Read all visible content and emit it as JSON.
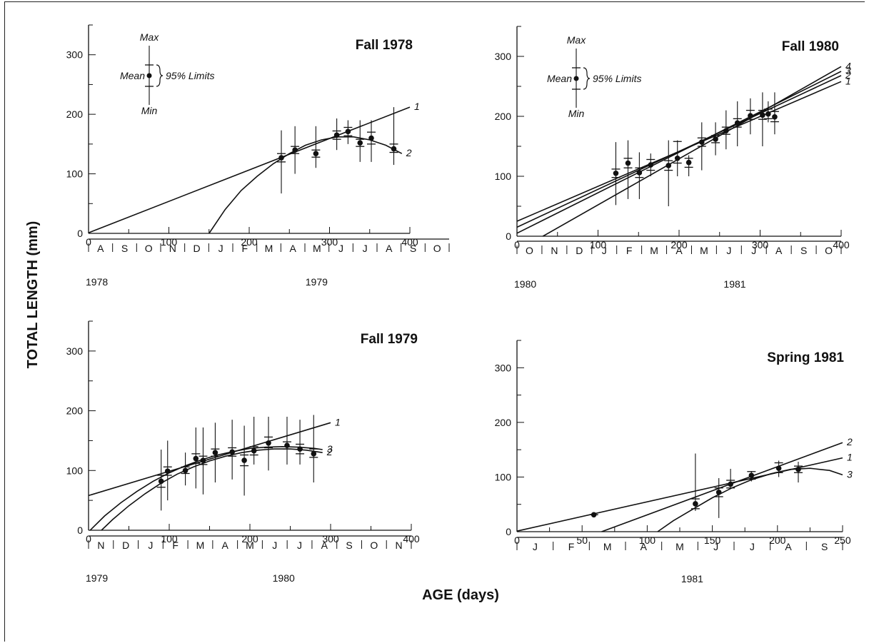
{
  "figure": {
    "ylabel": "TOTAL LENGTH (mm)",
    "xlabel": "AGE (days)"
  },
  "colors": {
    "ink": "#111111",
    "background": "#ffffff"
  },
  "chart_data": [
    {
      "type": "scatter",
      "title": "Fall 1978",
      "xlim": [
        0,
        400
      ],
      "ylim": [
        0,
        350
      ],
      "xticks": [
        0,
        100,
        200,
        300,
        400
      ],
      "yticks": [
        0,
        100,
        200,
        300
      ],
      "months": [
        "A",
        "S",
        "O",
        "N",
        "D",
        "J",
        "F",
        "M",
        "A",
        "M",
        "J",
        "J",
        "A",
        "S",
        "O"
      ],
      "years": [
        {
          "label": "1978",
          "x": 0
        },
        {
          "label": "1979",
          "x": 270
        }
      ],
      "legend": {
        "max": "Max",
        "mean": "Mean",
        "limits": "95% Limits",
        "min": "Min"
      },
      "points": [
        {
          "x": 240,
          "mean": 127,
          "lo": 120,
          "hi": 134,
          "min": 67,
          "max": 173
        },
        {
          "x": 257,
          "mean": 140,
          "lo": 134,
          "hi": 146,
          "min": 100,
          "max": 180
        },
        {
          "x": 283,
          "mean": 134,
          "lo": 128,
          "hi": 140,
          "min": 110,
          "max": 180
        },
        {
          "x": 309,
          "mean": 165,
          "lo": 158,
          "hi": 172,
          "min": 140,
          "max": 193
        },
        {
          "x": 323,
          "mean": 171,
          "lo": 164,
          "hi": 178,
          "min": 150,
          "max": 190
        },
        {
          "x": 338,
          "mean": 152,
          "lo": 146,
          "hi": 158,
          "min": 120,
          "max": 190
        },
        {
          "x": 352,
          "mean": 160,
          "lo": 150,
          "hi": 170,
          "min": 120,
          "max": 190
        },
        {
          "x": 380,
          "mean": 142,
          "lo": 136,
          "hi": 150,
          "min": 115,
          "max": 212
        }
      ],
      "curves": [
        {
          "name": "1",
          "points": [
            [
              0,
              1
            ],
            [
              400,
              212
            ]
          ]
        },
        {
          "name": "2",
          "points": [
            [
              150,
              0
            ],
            [
              170,
              40
            ],
            [
              190,
              72
            ],
            [
              210,
              96
            ],
            [
              230,
              117
            ],
            [
              250,
              134
            ],
            [
              270,
              148
            ],
            [
              290,
              157
            ],
            [
              310,
              162
            ],
            [
              330,
              162
            ],
            [
              350,
              157
            ],
            [
              370,
              148
            ],
            [
              390,
              134
            ]
          ]
        }
      ]
    },
    {
      "type": "scatter",
      "title": "Fall 1980",
      "xlim": [
        0,
        400
      ],
      "ylim": [
        0,
        350
      ],
      "xticks": [
        0,
        100,
        200,
        300,
        400
      ],
      "yticks": [
        0,
        100,
        200,
        300
      ],
      "months": [
        "O",
        "N",
        "D",
        "J",
        "F",
        "M",
        "A",
        "M",
        "J",
        "J",
        "A",
        "S",
        "O"
      ],
      "years": [
        {
          "label": "1980",
          "x": 0
        },
        {
          "label": "1981",
          "x": 255
        }
      ],
      "legend": {
        "max": "Max",
        "mean": "Mean",
        "limits": "95% Limits",
        "min": "Min"
      },
      "points": [
        {
          "x": 122,
          "mean": 105,
          "lo": 98,
          "hi": 112,
          "min": 52,
          "max": 157
        },
        {
          "x": 137,
          "mean": 122,
          "lo": 114,
          "hi": 130,
          "min": 62,
          "max": 160
        },
        {
          "x": 151,
          "mean": 106,
          "lo": 98,
          "hi": 114,
          "min": 62,
          "max": 140
        },
        {
          "x": 165,
          "mean": 119,
          "lo": 110,
          "hi": 128,
          "min": 100,
          "max": 138
        },
        {
          "x": 187,
          "mean": 118,
          "lo": 110,
          "hi": 126,
          "min": 50,
          "max": 160
        },
        {
          "x": 198,
          "mean": 130,
          "lo": 122,
          "hi": 158,
          "min": 100,
          "max": 160
        },
        {
          "x": 212,
          "mean": 123,
          "lo": 115,
          "hi": 130,
          "min": 100,
          "max": 135
        },
        {
          "x": 228,
          "mean": 157,
          "lo": 150,
          "hi": 164,
          "min": 110,
          "max": 190
        },
        {
          "x": 245,
          "mean": 162,
          "lo": 156,
          "hi": 168,
          "min": 135,
          "max": 190
        },
        {
          "x": 258,
          "mean": 176,
          "lo": 170,
          "hi": 182,
          "min": 145,
          "max": 210
        },
        {
          "x": 272,
          "mean": 189,
          "lo": 182,
          "hi": 196,
          "min": 150,
          "max": 225
        },
        {
          "x": 288,
          "mean": 201,
          "lo": 195,
          "hi": 210,
          "min": 170,
          "max": 230
        },
        {
          "x": 303,
          "mean": 202,
          "lo": 195,
          "hi": 210,
          "min": 150,
          "max": 240
        },
        {
          "x": 310,
          "mean": 204,
          "lo": 196,
          "hi": 212,
          "min": 190,
          "max": 225
        },
        {
          "x": 318,
          "mean": 199,
          "lo": 191,
          "hi": 208,
          "min": 170,
          "max": 240
        }
      ],
      "curves": [
        {
          "name": "1",
          "points": [
            [
              0,
              25
            ],
            [
              400,
              258
            ]
          ]
        },
        {
          "name": "2",
          "points": [
            [
              0,
              15
            ],
            [
              400,
              268
            ]
          ]
        },
        {
          "name": "3",
          "points": [
            [
              0,
              5
            ],
            [
              400,
              275
            ]
          ]
        },
        {
          "name": "4",
          "points": [
            [
              32,
              0
            ],
            [
              400,
              283
            ]
          ]
        }
      ]
    },
    {
      "type": "scatter",
      "title": "Fall 1979",
      "xlim": [
        0,
        400
      ],
      "ylim": [
        0,
        350
      ],
      "xticks": [
        0,
        100,
        200,
        300,
        400
      ],
      "yticks": [
        0,
        100,
        200,
        300
      ],
      "months": [
        "N",
        "D",
        "J",
        "F",
        "M",
        "A",
        "M",
        "J",
        "J",
        "A",
        "S",
        "O",
        "N"
      ],
      "years": [
        {
          "label": "1979",
          "x": 0
        },
        {
          "label": "1980",
          "x": 228
        }
      ],
      "points": [
        {
          "x": 90,
          "mean": 82,
          "lo": 72,
          "hi": 92,
          "min": 33,
          "max": 135
        },
        {
          "x": 98,
          "mean": 99,
          "lo": 92,
          "hi": 106,
          "min": 50,
          "max": 150
        },
        {
          "x": 120,
          "mean": 100,
          "lo": 95,
          "hi": 106,
          "min": 75,
          "max": 130
        },
        {
          "x": 133,
          "mean": 120,
          "lo": 112,
          "hi": 128,
          "min": 70,
          "max": 172
        },
        {
          "x": 142,
          "mean": 117,
          "lo": 110,
          "hi": 124,
          "min": 60,
          "max": 172
        },
        {
          "x": 157,
          "mean": 130,
          "lo": 124,
          "hi": 136,
          "min": 80,
          "max": 180
        },
        {
          "x": 178,
          "mean": 131,
          "lo": 124,
          "hi": 138,
          "min": 85,
          "max": 185
        },
        {
          "x": 193,
          "mean": 117,
          "lo": 108,
          "hi": 126,
          "min": 58,
          "max": 175
        },
        {
          "x": 205,
          "mean": 133,
          "lo": 126,
          "hi": 140,
          "min": 110,
          "max": 190
        },
        {
          "x": 223,
          "mean": 146,
          "lo": 138,
          "hi": 156,
          "min": 100,
          "max": 190
        },
        {
          "x": 246,
          "mean": 142,
          "lo": 136,
          "hi": 148,
          "min": 110,
          "max": 190
        },
        {
          "x": 262,
          "mean": 136,
          "lo": 128,
          "hi": 144,
          "min": 110,
          "max": 185
        },
        {
          "x": 279,
          "mean": 128,
          "lo": 122,
          "hi": 136,
          "min": 80,
          "max": 193
        }
      ],
      "curves": [
        {
          "name": "1",
          "points": [
            [
              0,
              58
            ],
            [
              300,
              180
            ]
          ]
        },
        {
          "name": "3",
          "points": [
            [
              2,
              0
            ],
            [
              20,
              24
            ],
            [
              40,
              46
            ],
            [
              60,
              65
            ],
            [
              80,
              82
            ],
            [
              100,
              96
            ],
            [
              120,
              108
            ],
            [
              140,
              118
            ],
            [
              160,
              126
            ],
            [
              180,
              132
            ],
            [
              200,
              137
            ],
            [
              220,
              139
            ],
            [
              240,
              140
            ],
            [
              260,
              139
            ],
            [
              280,
              137
            ],
            [
              290,
              135
            ]
          ]
        },
        {
          "name": "2",
          "points": [
            [
              16,
              0
            ],
            [
              30,
              18
            ],
            [
              50,
              41
            ],
            [
              70,
              61
            ],
            [
              90,
              79
            ],
            [
              110,
              94
            ],
            [
              130,
              106
            ],
            [
              150,
              116
            ],
            [
              170,
              124
            ],
            [
              190,
              130
            ],
            [
              210,
              134
            ],
            [
              230,
              136
            ],
            [
              250,
              136
            ],
            [
              270,
              134
            ],
            [
              290,
              130
            ]
          ]
        }
      ]
    },
    {
      "type": "scatter",
      "title": "Spring 1981",
      "xlim": [
        0,
        250
      ],
      "ylim": [
        0,
        350
      ],
      "xticks": [
        0,
        50,
        100,
        150,
        200,
        250
      ],
      "yticks": [
        0,
        100,
        200,
        300
      ],
      "months": [
        "J",
        "F",
        "M",
        "A",
        "M",
        "J",
        "J",
        "A",
        "S"
      ],
      "years": [
        {
          "label": "1981",
          "x": 126
        }
      ],
      "points": [
        {
          "x": 59,
          "mean": 31,
          "lo": 31,
          "hi": 31,
          "min": 31,
          "max": 31
        },
        {
          "x": 137,
          "mean": 51,
          "lo": 42,
          "hi": 60,
          "min": 38,
          "max": 143
        },
        {
          "x": 155,
          "mean": 72,
          "lo": 64,
          "hi": 80,
          "min": 25,
          "max": 98
        },
        {
          "x": 164,
          "mean": 87,
          "lo": 80,
          "hi": 94,
          "min": 78,
          "max": 115
        },
        {
          "x": 180,
          "mean": 103,
          "lo": 96,
          "hi": 110,
          "min": 92,
          "max": 111
        },
        {
          "x": 201,
          "mean": 116,
          "lo": 108,
          "hi": 126,
          "min": 100,
          "max": 130
        },
        {
          "x": 216,
          "mean": 114,
          "lo": 108,
          "hi": 120,
          "min": 90,
          "max": 128
        }
      ],
      "curves": [
        {
          "name": "2",
          "points": [
            [
              65,
              0
            ],
            [
              250,
              163
            ]
          ]
        },
        {
          "name": "1",
          "points": [
            [
              0,
              1
            ],
            [
              250,
              135
            ]
          ]
        },
        {
          "name": "3",
          "points": [
            [
              108,
              0
            ],
            [
              120,
              20
            ],
            [
              135,
              41
            ],
            [
              150,
              62
            ],
            [
              165,
              80
            ],
            [
              180,
              95
            ],
            [
              195,
              106
            ],
            [
              210,
              114
            ],
            [
              225,
              116
            ],
            [
              240,
              112
            ],
            [
              250,
              104
            ]
          ]
        }
      ]
    }
  ]
}
